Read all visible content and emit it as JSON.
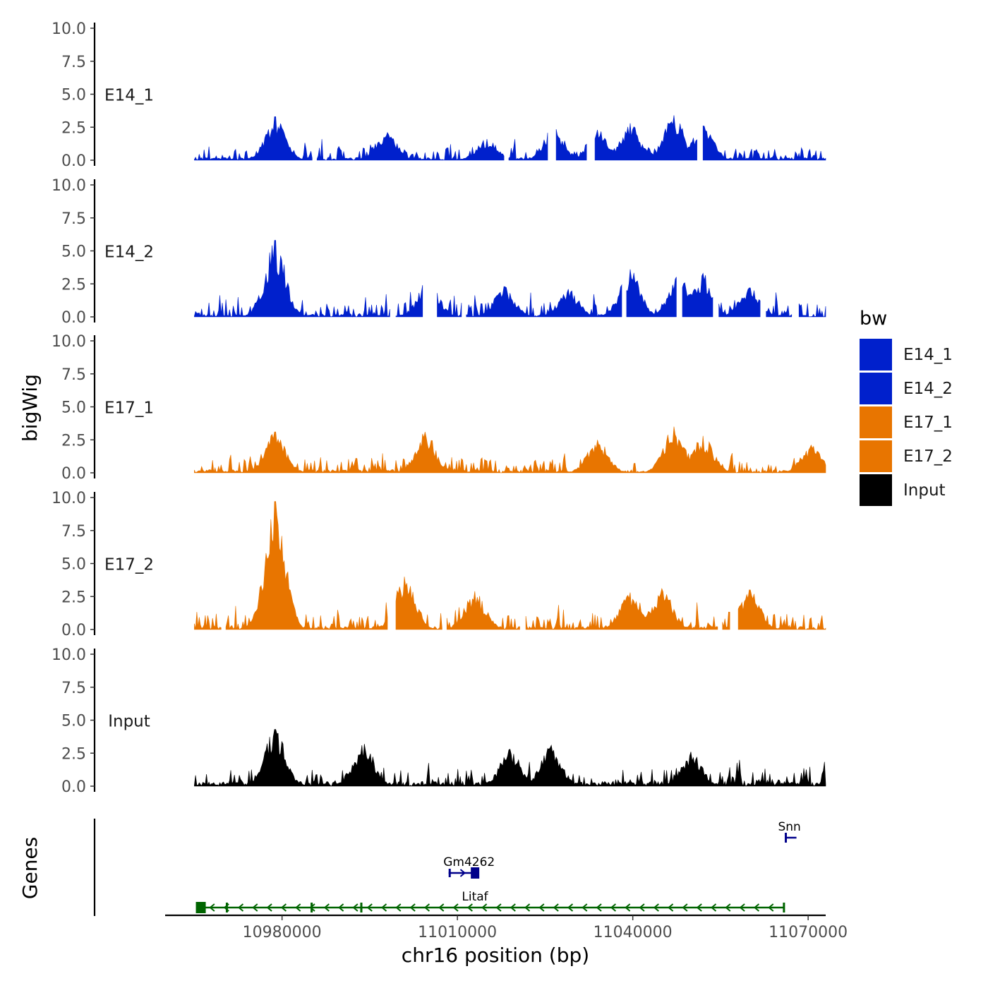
{
  "chart_data": {
    "type": "area",
    "title": "",
    "xlabel": "chr16 position (bp)",
    "ylabel": "bigWig",
    "genes_label": "Genes",
    "xlim": [
      10960000,
      11073000
    ],
    "x_ticks": [
      10980000,
      11010000,
      11040000,
      11070000
    ],
    "x_tick_labels": [
      "10980000",
      "11010000",
      "11040000",
      "11070000"
    ],
    "ylim": [
      0,
      10
    ],
    "y_ticks": [
      0,
      2.5,
      5,
      7.5,
      10
    ],
    "y_tick_labels": [
      "0.0",
      "2.5",
      "5.0",
      "7.5",
      "10.0"
    ],
    "data_range": [
      10965000,
      11073000
    ],
    "legend": {
      "title": "bw",
      "placement": "right",
      "entries": [
        {
          "label": "E14_1",
          "color": "#0020CC"
        },
        {
          "label": "E14_2",
          "color": "#0020CC"
        },
        {
          "label": "E17_1",
          "color": "#E87500"
        },
        {
          "label": "E17_2",
          "color": "#E87500"
        },
        {
          "label": "Input",
          "color": "#000000"
        }
      ]
    },
    "series": [
      {
        "name": "E14_1",
        "color": "#0020CC",
        "baseline": 0.35,
        "base_max": 0.35,
        "noise": 0.9,
        "gap_prob": 0.04,
        "seed": 11,
        "peaks": [
          {
            "x": 10978800,
            "y": 3.3
          },
          {
            "x": 10998000,
            "y": 2.1
          },
          {
            "x": 11015000,
            "y": 1.6
          },
          {
            "x": 11026500,
            "y": 2.5
          },
          {
            "x": 11034000,
            "y": 2.3
          },
          {
            "x": 11039500,
            "y": 2.8
          },
          {
            "x": 11047000,
            "y": 3.4
          },
          {
            "x": 11052000,
            "y": 2.6
          }
        ]
      },
      {
        "name": "E14_2",
        "color": "#0020CC",
        "baseline": 0.35,
        "base_max": 0.35,
        "noise": 1.0,
        "gap_prob": 0.06,
        "seed": 23,
        "peaks": [
          {
            "x": 10978800,
            "y": 5.8
          },
          {
            "x": 11005000,
            "y": 2.8
          },
          {
            "x": 11018000,
            "y": 2.3
          },
          {
            "x": 11029000,
            "y": 2.1
          },
          {
            "x": 11039500,
            "y": 3.6
          },
          {
            "x": 11048000,
            "y": 3.2
          },
          {
            "x": 11052000,
            "y": 3.3
          },
          {
            "x": 11060000,
            "y": 2.2
          }
        ]
      },
      {
        "name": "E17_1",
        "color": "#E87500",
        "baseline": 0.4,
        "base_max": 0.4,
        "noise": 1.0,
        "gap_prob": 0.0,
        "seed": 37,
        "peaks": [
          {
            "x": 10978800,
            "y": 3.1
          },
          {
            "x": 11004500,
            "y": 3.1
          },
          {
            "x": 11034000,
            "y": 2.5
          },
          {
            "x": 11047000,
            "y": 3.5
          },
          {
            "x": 11052000,
            "y": 2.8
          },
          {
            "x": 11070500,
            "y": 2.1
          }
        ]
      },
      {
        "name": "E17_2",
        "color": "#E87500",
        "baseline": 0.4,
        "base_max": 0.4,
        "noise": 1.1,
        "gap_prob": 0.05,
        "seed": 41,
        "peaks": [
          {
            "x": 10978800,
            "y": 9.7
          },
          {
            "x": 11001000,
            "y": 4.0
          },
          {
            "x": 11013000,
            "y": 2.9
          },
          {
            "x": 11039500,
            "y": 2.8
          },
          {
            "x": 11045000,
            "y": 3.1
          },
          {
            "x": 11060000,
            "y": 3.0
          }
        ]
      },
      {
        "name": "Input",
        "color": "#000000",
        "baseline": 0.6,
        "base_max": 0.6,
        "noise": 1.1,
        "gap_prob": 0.0,
        "seed": 53,
        "peaks": [
          {
            "x": 10978800,
            "y": 4.3
          },
          {
            "x": 10994000,
            "y": 3.2
          },
          {
            "x": 11026000,
            "y": 3.1
          },
          {
            "x": 11019000,
            "y": 2.8
          },
          {
            "x": 11050000,
            "y": 2.6
          }
        ]
      }
    ],
    "genes": [
      {
        "name": "Snn",
        "strand": "+",
        "start": 11066000,
        "end": 11068000,
        "row": 2,
        "color": "#00008B",
        "label_x": 11066800
      },
      {
        "name": "Gm4262",
        "strand": "+",
        "start": 11008500,
        "end": 11013500,
        "row": 1,
        "color": "#00008B",
        "label_x": 11012000
      },
      {
        "name": "Litaf",
        "strand": "-",
        "start": 10965500,
        "end": 11066000,
        "row": 0,
        "color": "#006400",
        "label_x": 11013000
      }
    ]
  }
}
